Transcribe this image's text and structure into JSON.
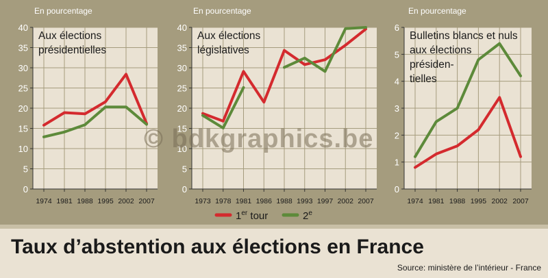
{
  "title": "Taux d’abstention aux élections en France",
  "source": "Source: ministère de l’intérieur - France",
  "watermark": "© bdkgraphics.be",
  "colors": {
    "background": "#a59c7e",
    "plot_bg": "#eae2d3",
    "first_round": "#d42a2e",
    "second_round": "#5d8a3a"
  },
  "legend": {
    "first_round_base": "1",
    "first_round_sup": "er",
    "first_round_suffix": " tour",
    "second_round_base": "2",
    "second_round_sup": "e"
  },
  "chart_data": [
    {
      "type": "line",
      "unit_label": "En pourcentage",
      "title_lines": [
        "Aux élections",
        "présidentielles"
      ],
      "categories": [
        "1974",
        "1981",
        "1988",
        "1995",
        "2002",
        "2007"
      ],
      "ylim": [
        0,
        40
      ],
      "yticks": [
        0,
        5,
        10,
        15,
        20,
        25,
        30,
        35,
        40
      ],
      "grid": true,
      "series": [
        {
          "name": "1er tour",
          "color_key": "first_round",
          "values": [
            15.8,
            18.9,
            18.6,
            21.6,
            28.4,
            16.2
          ]
        },
        {
          "name": "2e",
          "color_key": "second_round",
          "values": [
            12.9,
            14.1,
            15.9,
            20.3,
            20.3,
            16.0
          ]
        }
      ]
    },
    {
      "type": "line",
      "unit_label": "En pourcentage",
      "title_lines": [
        "Aux élections",
        "législatives"
      ],
      "categories": [
        "1973",
        "1978",
        "1981",
        "1986",
        "1988",
        "1993",
        "1997",
        "2002",
        "2007"
      ],
      "ylim": [
        0,
        40
      ],
      "yticks": [
        0,
        5,
        10,
        15,
        20,
        25,
        30,
        35,
        40
      ],
      "grid": true,
      "series": [
        {
          "name": "1er tour",
          "color_key": "first_round",
          "values": [
            18.7,
            16.8,
            29.1,
            21.5,
            34.3,
            30.8,
            32.0,
            35.6,
            39.6
          ]
        },
        {
          "name": "2e",
          "color_key": "second_round",
          "values": [
            18.2,
            15.1,
            25.1,
            null,
            30.1,
            32.4,
            29.1,
            39.7,
            40.0
          ]
        }
      ]
    },
    {
      "type": "line",
      "unit_label": "En pourcentage",
      "title_lines": [
        "Bulletins blancs et nuls",
        "aux élections",
        "présiden-",
        "tielles"
      ],
      "categories": [
        "1974",
        "1981",
        "1988",
        "1995",
        "2002",
        "2007"
      ],
      "ylim": [
        0,
        6
      ],
      "yticks": [
        0,
        1,
        2,
        3,
        4,
        5,
        6
      ],
      "grid": true,
      "series": [
        {
          "name": "1er tour",
          "color_key": "first_round",
          "values": [
            0.8,
            1.3,
            1.6,
            2.2,
            3.4,
            1.2
          ]
        },
        {
          "name": "2e",
          "color_key": "second_round",
          "values": [
            1.2,
            2.5,
            3.0,
            4.8,
            5.4,
            4.2
          ]
        }
      ]
    }
  ]
}
